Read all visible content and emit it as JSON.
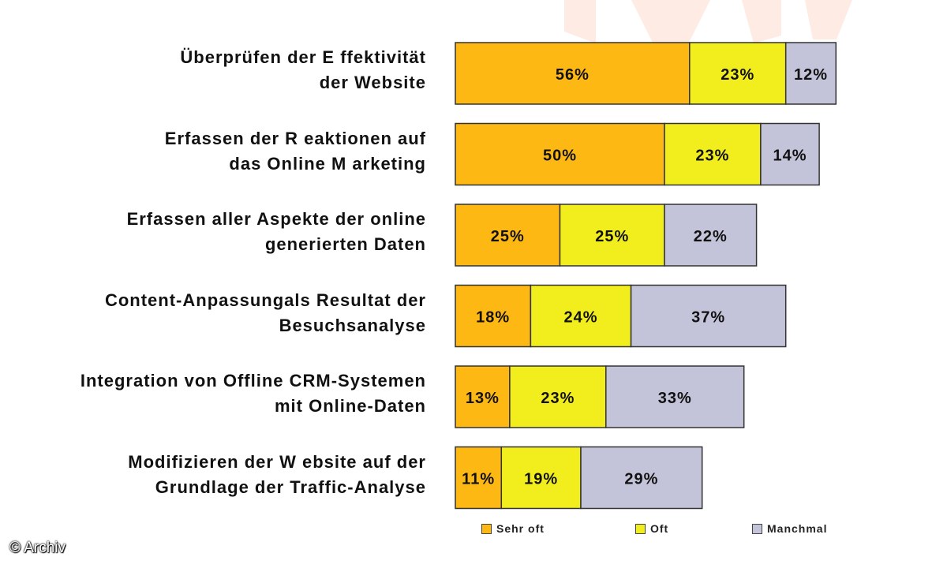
{
  "chart_data": {
    "type": "bar",
    "orientation": "horizontal",
    "stacked": true,
    "categories": [
      "Überprüfen der E ffektivität der Website",
      "Erfassen der R eaktionen auf das Online M arketing",
      "Erfassen aller Aspekte der online generierten Daten",
      "Content-Anpassungals Resultat der Besuchsanalyse",
      "Integration von Offline CRM-Systemen mit Online-Daten",
      "Modifizieren der W ebsite auf der Grundlage der Traffic-Analyse"
    ],
    "category_lines": [
      [
        "Überprüfen der E ffektivität",
        "der Website"
      ],
      [
        "Erfassen der R eaktionen auf",
        "das Online M arketing"
      ],
      [
        "Erfassen aller Aspekte der online",
        "generierten Daten"
      ],
      [
        "Content-Anpassungals Resultat der",
        "Besuchsanalyse"
      ],
      [
        "Integration von Offline CRM-Systemen",
        "mit Online-Daten"
      ],
      [
        "Modifizieren der W ebsite auf der",
        "Grundlage der Traffic-Analyse"
      ]
    ],
    "series": [
      {
        "name": "Sehr oft",
        "values": [
          56,
          50,
          25,
          18,
          13,
          11
        ],
        "color": "#FDB813"
      },
      {
        "name": "Oft",
        "values": [
          23,
          23,
          25,
          24,
          23,
          19
        ],
        "color": "#F2EE1E"
      },
      {
        "name": "Manchmal",
        "values": [
          12,
          14,
          22,
          37,
          33,
          29
        ],
        "color": "#C3C3D9"
      }
    ],
    "value_suffix": "%",
    "legend_position": "bottom",
    "grid": false,
    "xlim": [
      0,
      100
    ]
  },
  "legend": {
    "items": [
      "Sehr oft",
      "Oft",
      "Manchmal"
    ]
  },
  "copyright": "© Archiv"
}
